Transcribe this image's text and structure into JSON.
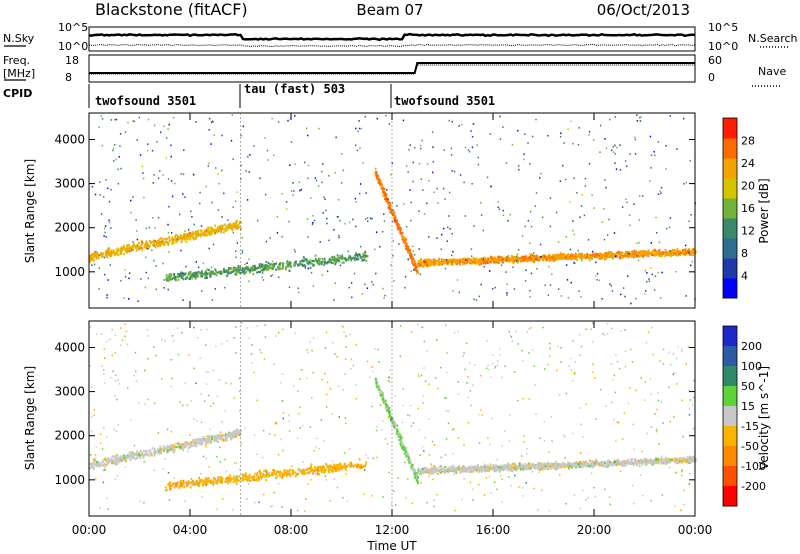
{
  "header": {
    "title": "Blackstone (fitACF)",
    "beam": "Beam 07",
    "date": "06/Oct/2013"
  },
  "left_labels": {
    "nsky": "N.Sky",
    "freq": "Freq.",
    "freq_unit": "[MHz]",
    "cpid": "CPID"
  },
  "right_labels": {
    "nsearch": "N.Search",
    "nave": "Nave"
  },
  "panels": {
    "noise": {
      "left_ticks": [
        "10^5",
        "10^0"
      ],
      "right_ticks": [
        "10^5",
        "10^0"
      ]
    },
    "freq": {
      "left_ticks": [
        "18",
        "8"
      ],
      "right_ticks": [
        "60",
        "0"
      ]
    }
  },
  "cpid_segments": [
    {
      "label": "twofsound 3501",
      "start": "00:00",
      "end": "06:00"
    },
    {
      "label": "tau (fast) 503",
      "start": "06:00",
      "end": "12:00"
    },
    {
      "label": "twofsound 3501",
      "start": "12:00",
      "end": "24:00"
    }
  ],
  "chart_data": [
    {
      "type": "heatmap",
      "title": "Power",
      "xlabel": "Time UT",
      "ylabel": "Slant Range [km]",
      "x_ticks": [
        "00:00",
        "04:00",
        "08:00",
        "12:00",
        "16:00",
        "20:00",
        "00:00"
      ],
      "xlim_hours": [
        0,
        24
      ],
      "y_ticks": [
        1000,
        2000,
        3000,
        4000
      ],
      "ylim": [
        180,
        4600
      ],
      "colorbar": {
        "label": "Power [dB]",
        "ticks": [
          4,
          8,
          12,
          16,
          20,
          24,
          28
        ],
        "range": [
          0,
          32
        ],
        "colors": [
          "#0000ff",
          "#1f3aa8",
          "#2f6d8e",
          "#3a8a6a",
          "#73b23d",
          "#d6c400",
          "#f4a400",
          "#ff6a00",
          "#ff1d00"
        ]
      },
      "features": [
        {
          "name": "early band",
          "t_start": 0.0,
          "t_end": 6.0,
          "range_start": 1350,
          "range_end": 2100,
          "power_db": 22
        },
        {
          "name": "daytime low band",
          "t_start": 3.0,
          "t_end": 11.0,
          "range_start": 880,
          "range_end": 1380,
          "power_db": 14
        },
        {
          "name": "noon descent",
          "t_start": 11.3,
          "t_end": 13.0,
          "range_start": 3300,
          "range_end": 1000,
          "power_db": 26
        },
        {
          "name": "afternoon band",
          "t_start": 13.0,
          "t_end": 24.0,
          "range_start": 1220,
          "range_end": 1480,
          "power_db": 24
        }
      ]
    },
    {
      "type": "heatmap",
      "title": "Velocity",
      "xlabel": "Time UT",
      "ylabel": "Slant Range [km]",
      "x_ticks": [
        "00:00",
        "04:00",
        "08:00",
        "12:00",
        "16:00",
        "20:00",
        "00:00"
      ],
      "xlim_hours": [
        0,
        24
      ],
      "y_ticks": [
        1000,
        2000,
        3000,
        4000
      ],
      "ylim": [
        180,
        4600
      ],
      "colorbar": {
        "label": "Velocity [m s^-1]",
        "ticks": [
          200,
          100,
          50,
          15,
          -15,
          -50,
          -100,
          -200
        ],
        "range": [
          -250,
          250
        ],
        "colors": [
          "#1e28c8",
          "#2c5aa8",
          "#2f8a6a",
          "#5fd23a",
          "#c8c8c8",
          "#f8b400",
          "#ff8a00",
          "#ff5000",
          "#ff0000"
        ]
      },
      "features": [
        {
          "name": "early band",
          "t_start": 0.0,
          "t_end": 6.0,
          "range_start": 1350,
          "range_end": 2100,
          "velocity": 0
        },
        {
          "name": "daytime low band",
          "t_start": 3.0,
          "t_end": 11.0,
          "range_start": 880,
          "range_end": 1380,
          "velocity": -60
        },
        {
          "name": "noon descent",
          "t_start": 11.3,
          "t_end": 13.0,
          "range_start": 3300,
          "range_end": 1000,
          "velocity": 40
        },
        {
          "name": "afternoon band",
          "t_start": 13.0,
          "t_end": 24.0,
          "range_start": 1220,
          "range_end": 1480,
          "velocity": 0
        }
      ]
    }
  ]
}
